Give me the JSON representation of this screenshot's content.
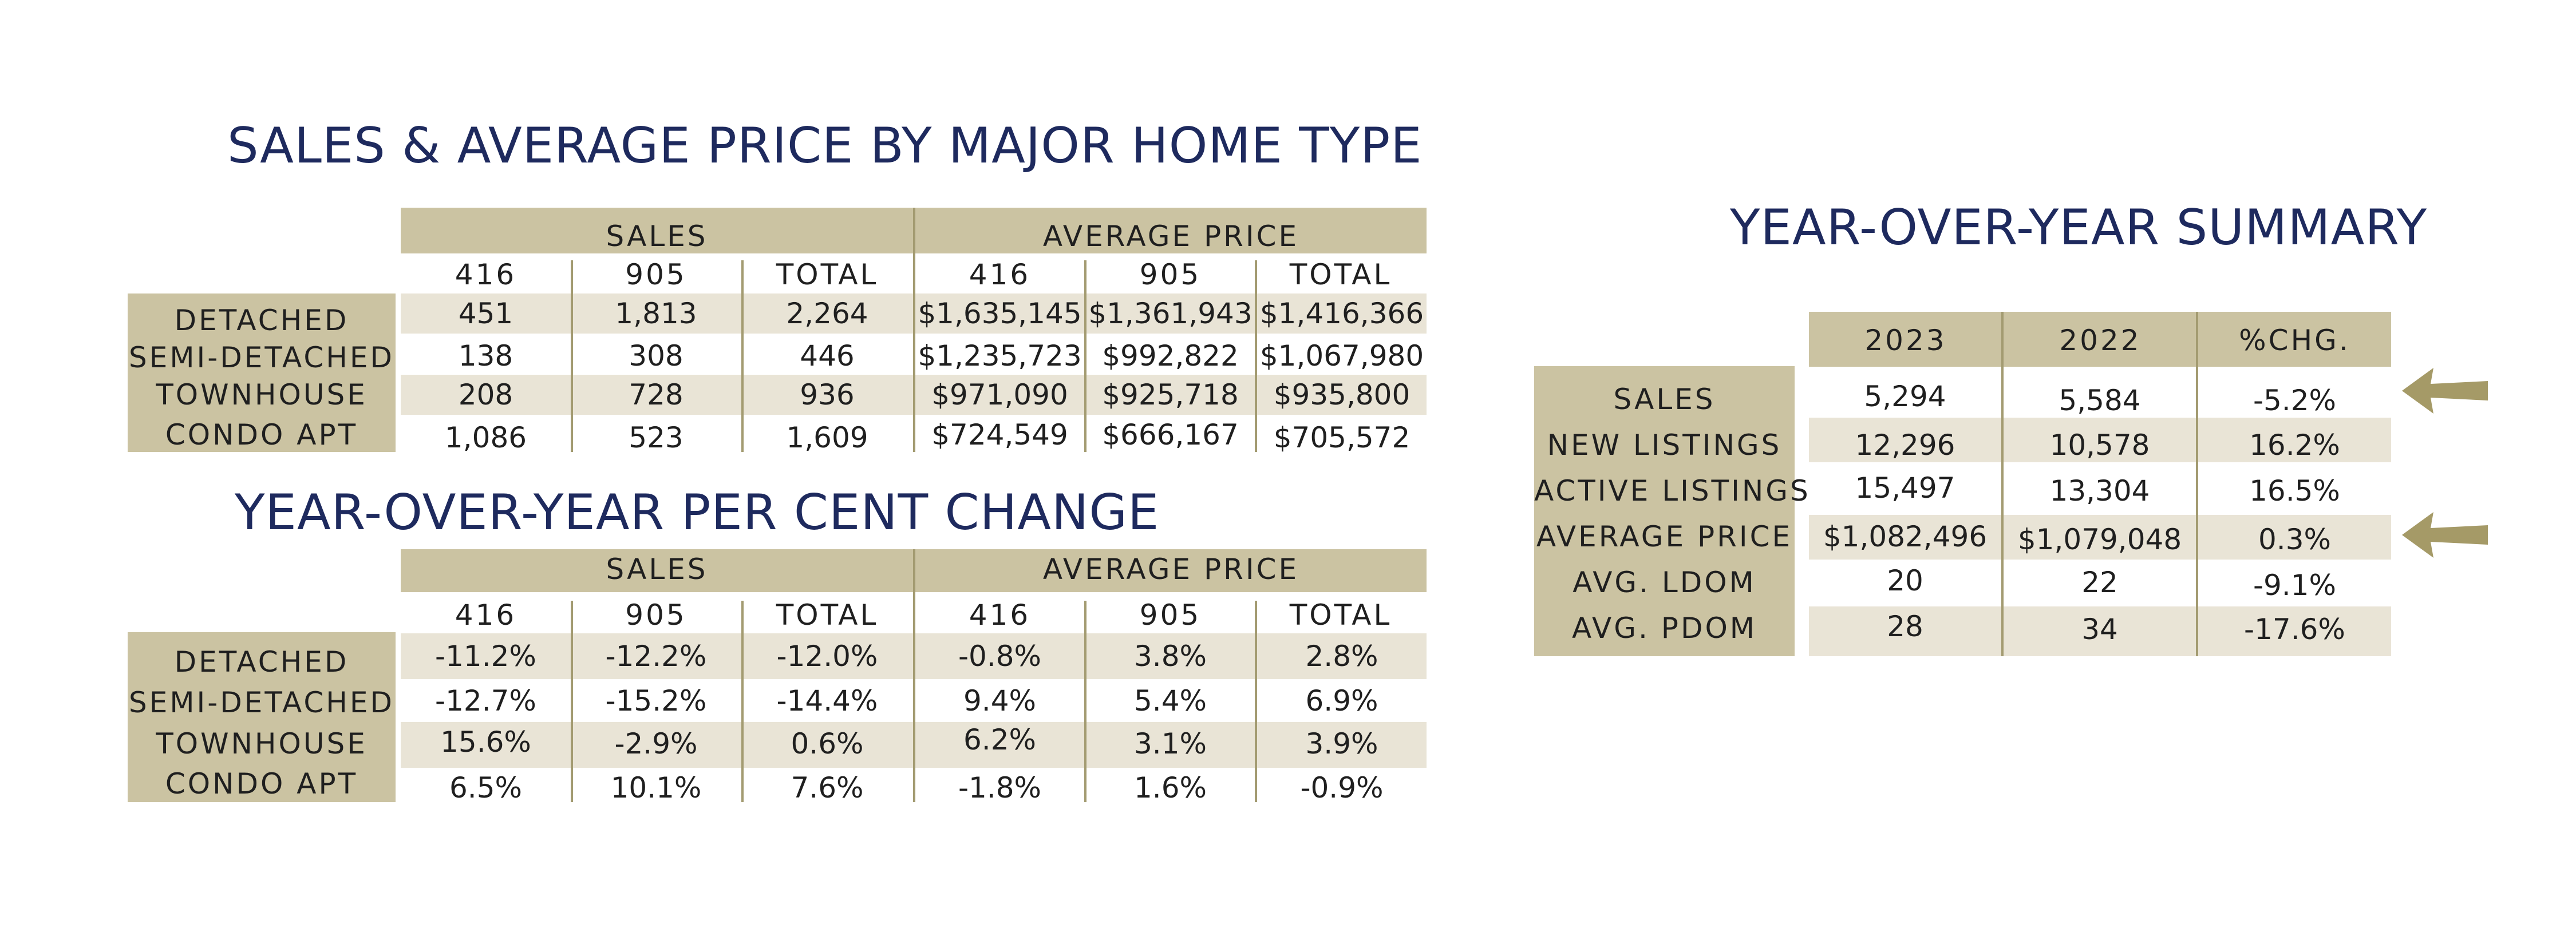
{
  "table1": {
    "title": "SALES & AVERAGE PRICE BY MAJOR HOME TYPE",
    "group_headers": [
      "SALES",
      "AVERAGE PRICE"
    ],
    "columns": [
      "416",
      "905",
      "TOTAL",
      "416",
      "905",
      "TOTAL"
    ],
    "rows": [
      {
        "label": "DETACHED",
        "values": [
          "451",
          "1,813",
          "2,264",
          "$1,635,145",
          "$1,361,943",
          "$1,416,366"
        ]
      },
      {
        "label": "SEMI-DETACHED",
        "values": [
          "138",
          "308",
          "446",
          "$1,235,723",
          "$992,822",
          "$1,067,980"
        ]
      },
      {
        "label": "TOWNHOUSE",
        "values": [
          "208",
          "728",
          "936",
          "$971,090",
          "$925,718",
          "$935,800"
        ]
      },
      {
        "label": "CONDO APT",
        "values": [
          "1,086",
          "523",
          "1,609",
          "$724,549",
          "$666,167",
          "$705,572"
        ]
      }
    ]
  },
  "table2": {
    "title": "YEAR-OVER-YEAR PER CENT CHANGE",
    "group_headers": [
      "SALES",
      "AVERAGE PRICE"
    ],
    "columns": [
      "416",
      "905",
      "TOTAL",
      "416",
      "905",
      "TOTAL"
    ],
    "rows": [
      {
        "label": "DETACHED",
        "values": [
          "-11.2%",
          "-12.2%",
          "-12.0%",
          "-0.8%",
          "3.8%",
          "2.8%"
        ]
      },
      {
        "label": "SEMI-DETACHED",
        "values": [
          "-12.7%",
          "-15.2%",
          "-14.4%",
          "9.4%",
          "5.4%",
          "6.9%"
        ]
      },
      {
        "label": "TOWNHOUSE",
        "values": [
          "15.6%",
          "-2.9%",
          "0.6%",
          "6.2%",
          "3.1%",
          "3.9%"
        ]
      },
      {
        "label": "CONDO APT",
        "values": [
          "6.5%",
          "10.1%",
          "7.6%",
          "-1.8%",
          "1.6%",
          "-0.9%"
        ]
      }
    ]
  },
  "summary": {
    "title": "YEAR-OVER-YEAR SUMMARY",
    "columns": [
      "2023",
      "2022",
      "%CHG."
    ],
    "rows": [
      {
        "label": "SALES",
        "values": [
          "5,294",
          "5,584",
          "-5.2%"
        ]
      },
      {
        "label": "NEW LISTINGS",
        "values": [
          "12,296",
          "10,578",
          "16.2%"
        ]
      },
      {
        "label": "ACTIVE LISTINGS",
        "values": [
          "15,497",
          "13,304",
          "16.5%"
        ]
      },
      {
        "label": "AVERAGE PRICE",
        "values": [
          "$1,082,496",
          "$1,079,048",
          "0.3%"
        ]
      },
      {
        "label": "AVG. LDOM",
        "values": [
          "20",
          "22",
          "-9.1%"
        ]
      },
      {
        "label": "AVG. PDOM",
        "values": [
          "28",
          "34",
          "-17.6%"
        ]
      }
    ],
    "arrow_color": "#a59a67"
  },
  "colors": {
    "title": "#1e2a5e",
    "band": "#cbc3a2",
    "stripe": "#e9e4d6",
    "divider": "#a39b71"
  }
}
